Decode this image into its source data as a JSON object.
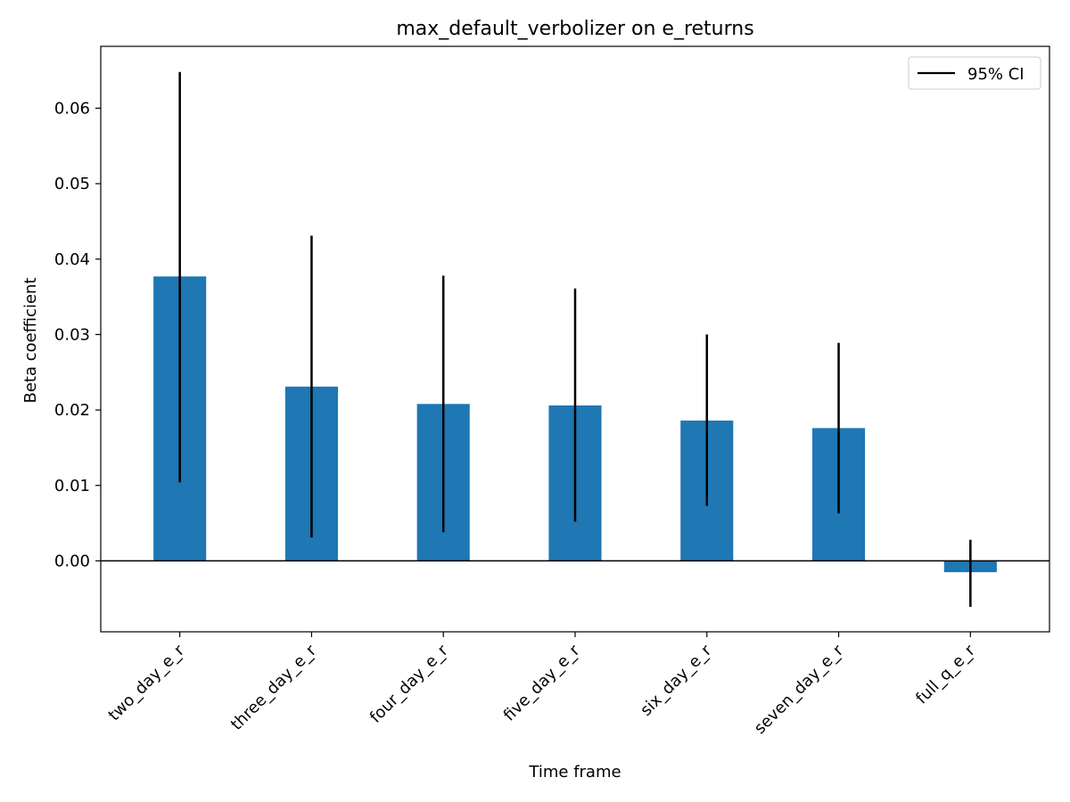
{
  "chart_data": {
    "type": "bar",
    "title": "max_default_verbolizer on e_returns",
    "xlabel": "Time frame",
    "ylabel": "Beta coefficient",
    "categories": [
      "two_day_e_r",
      "three_day_e_r",
      "four_day_e_r",
      "five_day_e_r",
      "six_day_e_r",
      "seven_day_e_r",
      "full_q_e_r"
    ],
    "values": [
      0.0377,
      0.0231,
      0.0208,
      0.0206,
      0.0186,
      0.0176,
      -0.0015
    ],
    "ci_lower": [
      0.0104,
      0.0031,
      0.0038,
      0.0052,
      0.0073,
      0.0063,
      -0.0061
    ],
    "ci_upper": [
      0.0648,
      0.0431,
      0.0378,
      0.0361,
      0.03,
      0.0289,
      0.0028
    ],
    "ylim": [
      -0.0094,
      0.0682
    ],
    "yticks": [
      0.0,
      0.01,
      0.02,
      0.03,
      0.04,
      0.05,
      0.06
    ],
    "ytick_labels": [
      "0.00",
      "0.01",
      "0.02",
      "0.03",
      "0.04",
      "0.05",
      "0.06"
    ],
    "legend": {
      "label": "95% CI",
      "position": "top-right"
    },
    "zero_line": true,
    "grid": false,
    "colors": {
      "bar": "#1f77b4",
      "errorbar": "#000000",
      "axes": "#000000"
    }
  }
}
